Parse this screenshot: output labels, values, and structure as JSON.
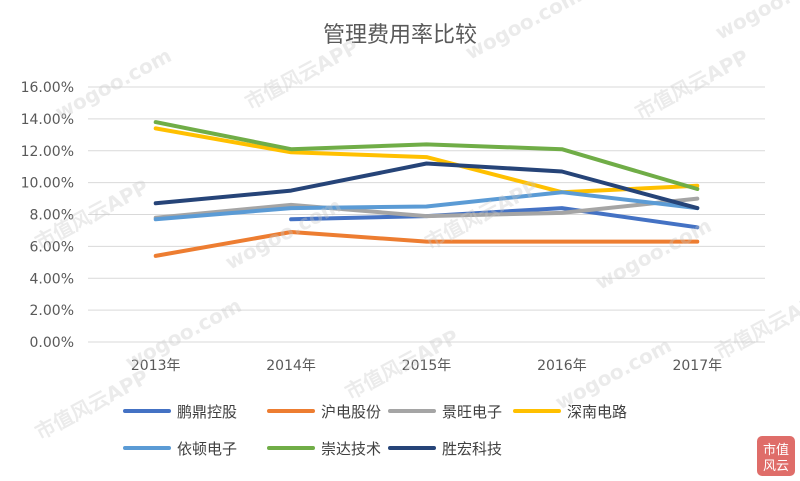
{
  "chart_data": {
    "type": "line",
    "title": "管理费用率比较",
    "xlabel": "",
    "ylabel": "",
    "categories": [
      "2013年",
      "2014年",
      "2015年",
      "2016年",
      "2017年"
    ],
    "ylim": [
      0,
      16
    ],
    "yticks": [
      "0.00%",
      "2.00%",
      "4.00%",
      "6.00%",
      "8.00%",
      "10.00%",
      "12.00%",
      "14.00%",
      "16.00%"
    ],
    "grid": true,
    "legend_position": "bottom",
    "series": [
      {
        "name": "鹏鼎控股",
        "color": "#4472C4",
        "values": [
          null,
          7.7,
          7.9,
          8.4,
          7.2
        ]
      },
      {
        "name": "沪电股份",
        "color": "#ED7D31",
        "values": [
          5.4,
          6.9,
          6.3,
          6.3,
          6.3
        ]
      },
      {
        "name": "景旺电子",
        "color": "#A5A5A5",
        "values": [
          7.8,
          8.6,
          7.9,
          8.1,
          9.0
        ]
      },
      {
        "name": "深南电路",
        "color": "#FFC000",
        "values": [
          13.4,
          11.9,
          11.6,
          9.4,
          9.8
        ]
      },
      {
        "name": "依顿电子",
        "color": "#5B9BD5",
        "values": [
          7.7,
          8.4,
          8.5,
          9.4,
          8.4
        ]
      },
      {
        "name": "崇达技术",
        "color": "#70AD47",
        "values": [
          13.8,
          12.1,
          12.4,
          12.1,
          9.6
        ]
      },
      {
        "name": "胜宏科技",
        "color": "#264478",
        "values": [
          8.7,
          9.5,
          11.2,
          10.7,
          8.4
        ]
      }
    ]
  },
  "watermark": {
    "text": "wogoo.com",
    "text2": "市值风云APP",
    "seal": [
      "风云",
      "市值"
    ]
  }
}
